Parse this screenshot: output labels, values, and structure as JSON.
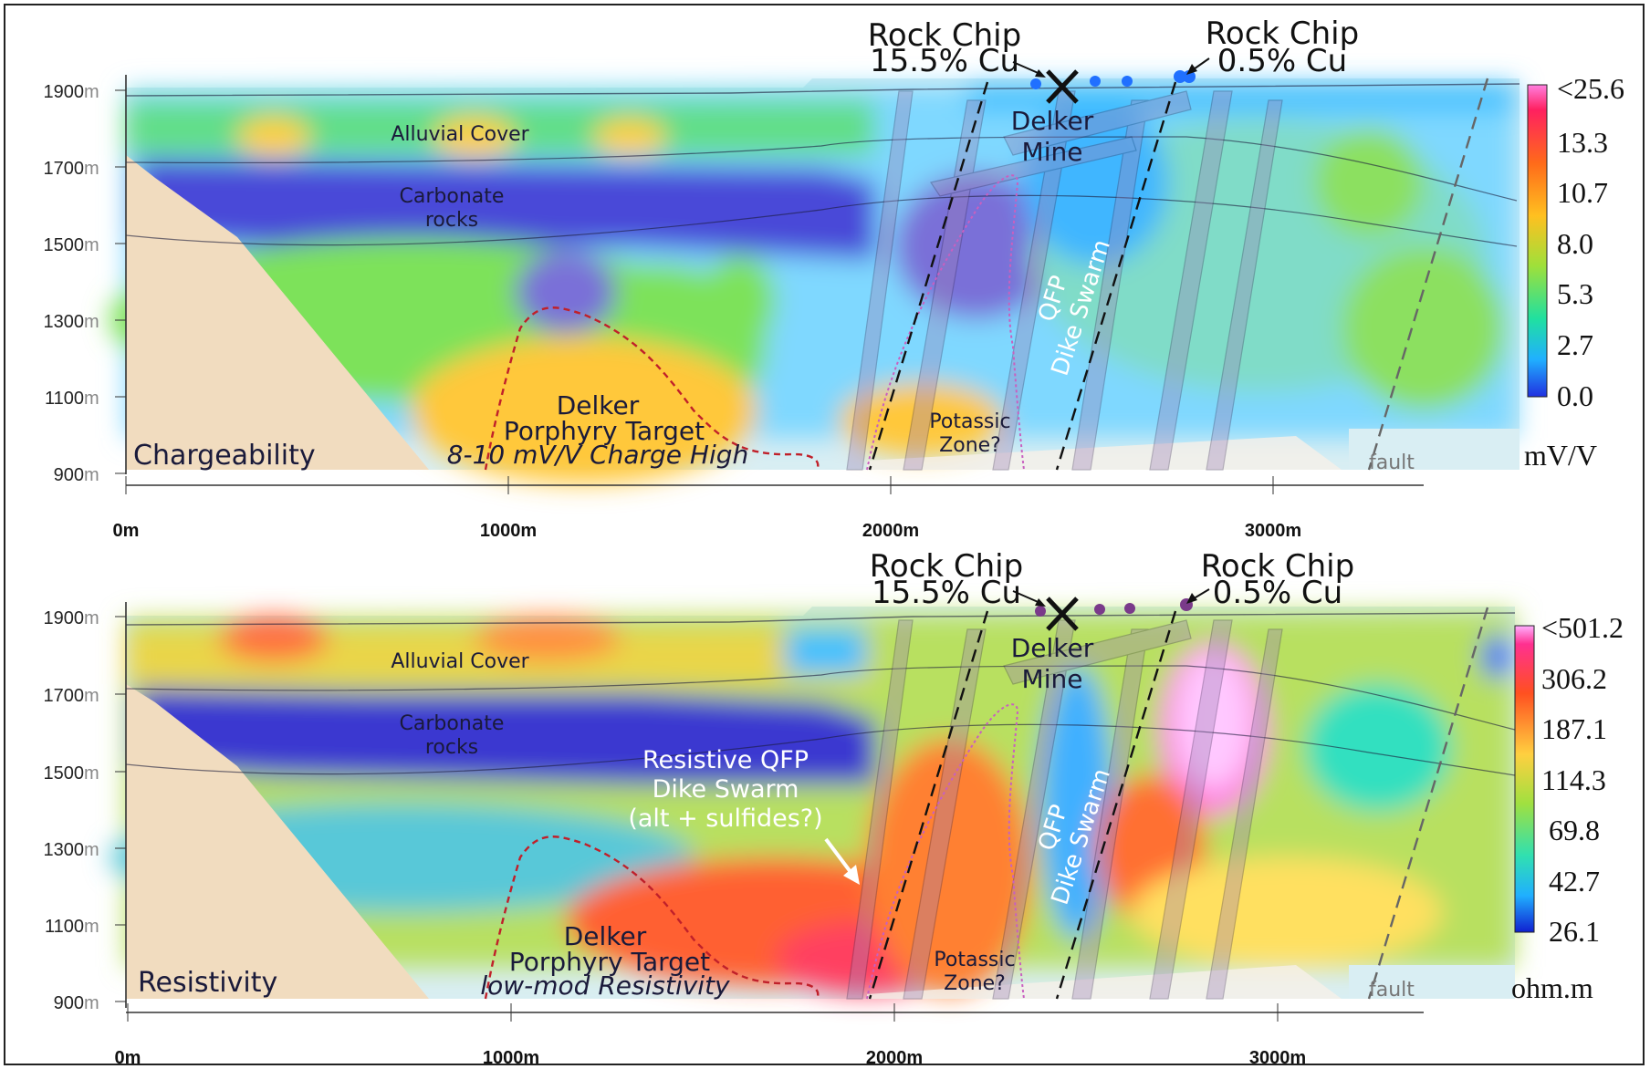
{
  "panels": [
    {
      "name": "Chargeability",
      "label": "Chargeability",
      "unit": "mV/V",
      "colorbar": [
        "<25.6",
        "13.3",
        "10.7",
        "8.0",
        "5.3",
        "2.7",
        "0.0"
      ],
      "target_note": "8-10 mV/V Charge High",
      "anomaly_label": null
    },
    {
      "name": "Resistivity",
      "label": "Resistivity",
      "unit": "ohm.m",
      "colorbar": [
        "<501.2",
        "306.2",
        "187.1",
        "114.3",
        "69.8",
        "42.7",
        "26.1"
      ],
      "target_note": "low-mod Resistivity",
      "anomaly_label": [
        "Resistive QFP",
        "Dike Swarm",
        "(alt + sulfides?)"
      ]
    }
  ],
  "y_ticks": [
    {
      "num": "1900",
      "unit": "m"
    },
    {
      "num": "1700",
      "unit": "m"
    },
    {
      "num": "1500",
      "unit": "m"
    },
    {
      "num": "1300",
      "unit": "m"
    },
    {
      "num": "1100",
      "unit": "m"
    },
    {
      "num": "900",
      "unit": "m"
    }
  ],
  "x_ticks": [
    "0m",
    "1000m",
    "2000m",
    "3000m"
  ],
  "labels": {
    "alluvial": "Alluvial Cover",
    "carbonate_1": "Carbonate",
    "carbonate_2": "rocks",
    "qfp_1": "QFP",
    "qfp_2": "Dike Swarm",
    "delker_1": "Delker",
    "delker_2": "Mine",
    "target_1": "Delker",
    "target_2": "Porphyry Target",
    "potassic_1": "Potassic",
    "potassic_2": "Zone?",
    "fault": "fault",
    "rockchip_a_1": "Rock Chip",
    "rockchip_a_2": "15.5% Cu",
    "rockchip_b_1": "Rock Chip",
    "rockchip_b_2": "0.5% Cu"
  },
  "colors": {
    "host_rock": "#f1dcbf",
    "low": "#3b3fd6",
    "high": "#ff2fa6",
    "target_outline": "#c0202a"
  }
}
